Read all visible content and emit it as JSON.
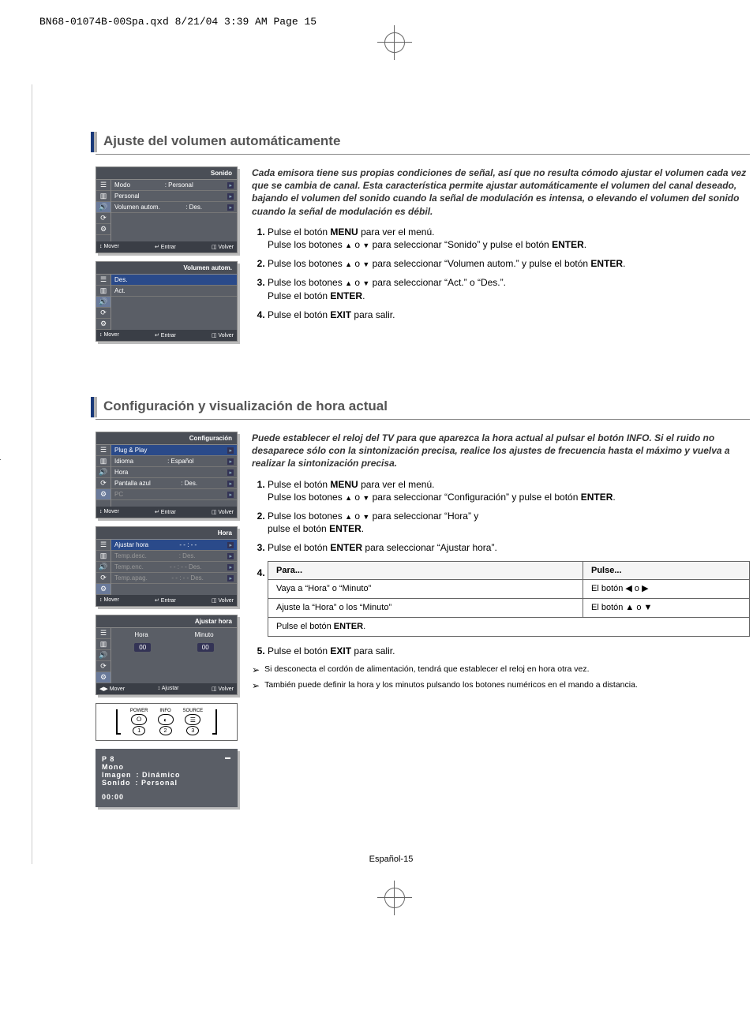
{
  "header": "BN68-01074B-00Spa.qxd  8/21/04  3:39 AM  Page 15",
  "section1": {
    "title": "Ajuste del volumen automáticamente",
    "intro": "Cada emisora tiene sus propias condiciones de señal, así que no resulta cómodo ajustar el volumen cada vez que se cambia de canal. Esta característica permite ajustar automáticamente el volumen del canal deseado, bajando el volumen del sonido cuando la señal de modulación es intensa, o  elevando el volumen del sonido cuando la señal de modulación es débil.",
    "steps": [
      "Pulse el botón <b>MENU</b> para ver el menú.<br>Pulse los botones <span class='arrow-glyph'>▲</span> o <span class='arrow-glyph'>▼</span> para seleccionar “Sonido” y pulse el botón <b>ENTER</b>.",
      "Pulse los botones <span class='arrow-glyph'>▲</span> o <span class='arrow-glyph'>▼</span> para seleccionar “Volumen autom.” y pulse el botón <b>ENTER</b>.",
      "Pulse los botones <span class='arrow-glyph'>▲</span> o <span class='arrow-glyph'>▼</span> para seleccionar “Act.” o “Des.”.<br>Pulse el botón <b>ENTER</b>.",
      "Pulse el botón <b>EXIT</b> para salir."
    ],
    "osd1": {
      "title": "Sonido",
      "rows": [
        {
          "l": "Modo",
          "r": ": Personal",
          "arrow": true
        },
        {
          "l": "Personal",
          "r": "",
          "arrow": true
        },
        {
          "l": "Volumen autom.",
          "r": ": Des.",
          "arrow": true,
          "hl": false
        }
      ],
      "footer": {
        "l": "↕ Mover",
        "c": "↵ Entrar",
        "r": "◫ Volver"
      }
    },
    "osd2": {
      "title": "Volumen autom.",
      "rows": [
        {
          "l": "Des.",
          "r": "",
          "hl": true
        },
        {
          "l": "Act.",
          "r": ""
        }
      ],
      "footer": {
        "l": "↕ Mover",
        "c": "↵ Entrar",
        "r": "◫ Volver"
      }
    }
  },
  "section2": {
    "title": "Configuración y visualización de hora actual",
    "intro": "Puede establecer el reloj del TV para que aparezca la hora actual al pulsar el botón INFO. Si el ruido no desaparece sólo con la  sintonización precisa, realice los ajustes de frecuencia hasta el máximo y vuelva a realizar la sintonización precisa.",
    "steps123": [
      "Pulse el botón <b>MENU</b> para ver el menú.<br>Pulse los botones <span class='arrow-glyph'>▲</span> o <span class='arrow-glyph'>▼</span> para seleccionar “Configuración” y pulse el botón <b>ENTER</b>.",
      "Pulse los botones <span class='arrow-glyph'>▲</span> o <span class='arrow-glyph'>▼</span> para seleccionar “Hora” y<br>pulse el botón <b>ENTER</b>.",
      "Pulse el botón <b>ENTER</b> para seleccionar “Ajustar hora”."
    ],
    "table": {
      "h1": "Para...",
      "h2": "Pulse...",
      "r1c1": "Vaya a “Hora” o “Minuto”",
      "r1c2": "El botón  ◀  o  ▶",
      "r2c1": "Ajuste la “Hora” o los “Minuto”",
      "r2c2": "El botón  ▲  o  ▼",
      "r3": "Pulse el botón <b>ENTER</b>."
    },
    "step5": "Pulse el botón <b>EXIT</b> para salir.",
    "notes": [
      "Si desconecta el cordón de alimentación, tendrá que establecer el reloj en hora otra vez.",
      "También puede definir la hora y los minutos pulsando los botones numéricos en el mando a distancia."
    ],
    "osd1": {
      "title": "Configuración",
      "rows": [
        {
          "l": "Plug & Play",
          "r": "",
          "arrow": true,
          "hl": true
        },
        {
          "l": "Idioma",
          "r": ": Español",
          "arrow": true
        },
        {
          "l": "Hora",
          "r": "",
          "arrow": true
        },
        {
          "l": "Pantalla azul",
          "r": ": Des.",
          "arrow": true
        },
        {
          "l": "PC",
          "r": "",
          "arrow": true,
          "dim": true
        }
      ],
      "footer": {
        "l": "↕ Mover",
        "c": "↵ Entrar",
        "r": "◫ Volver"
      }
    },
    "osd2": {
      "title": "Hora",
      "rows": [
        {
          "l": "Ajustar hora",
          "r": "- - : - -",
          "arrow": true,
          "hl": true
        },
        {
          "l": "Temp.desc.",
          "r": ":            Des.",
          "arrow": true,
          "dim": true
        },
        {
          "l": "Temp.enc.",
          "r": "- - : - -     Des.",
          "arrow": true,
          "dim": true
        },
        {
          "l": "Temp.apag.",
          "r": "- - : - -     Des.",
          "arrow": true,
          "dim": true
        }
      ],
      "footer": {
        "l": "↕ Mover",
        "c": "↵ Entrar",
        "r": "◫ Volver"
      }
    },
    "osd3": {
      "title": "Ajustar hora",
      "hora": "Hora",
      "minuto": "Minuto",
      "h": "00",
      "m": "00",
      "footer": {
        "l": "◀▶ Mover",
        "c": "↕ Ajustar",
        "r": "◫ Volver"
      }
    },
    "remote": {
      "b1": "POWER",
      "b2": "INFO",
      "b3": "SOURCE",
      "n1": "1",
      "n2": "2",
      "n3": "3"
    },
    "infobox": {
      "l1": "P 8",
      "l2": "Mono",
      "l3a": "Imagen",
      "l3b": ": Dinámico",
      "l4a": "Sonido",
      "l4b": ": Personal",
      "l5": "00:00"
    }
  },
  "footer": "Español-15"
}
